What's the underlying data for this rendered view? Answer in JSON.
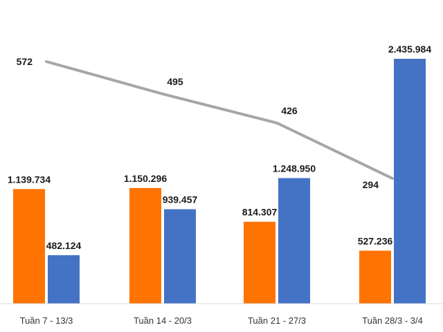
{
  "chart_data": {
    "type": "bar",
    "title": "",
    "xlabel": "",
    "ylabel": "",
    "categories": [
      "Tuần 7 - 13/3",
      "Tuần 14 - 20/3",
      "Tuần 21 - 27/3",
      "Tuần 28/3 - 3/4"
    ],
    "series": [
      {
        "name": "series-orange",
        "color": "#FF7300",
        "values": [
          1139734,
          1150296,
          814307,
          527236
        ],
        "labels": [
          "1.139.734",
          "1.150.296",
          "814.307",
          "527.236"
        ]
      },
      {
        "name": "series-blue",
        "color": "#4472C4",
        "values": [
          482124,
          939457,
          1248950,
          2435984
        ],
        "labels": [
          "482.124",
          "939.457",
          "1.248.950",
          "2.435.984"
        ]
      }
    ],
    "line_series": {
      "name": "series-line",
      "color": "#A6A6A6",
      "values": [
        572,
        495,
        426,
        294
      ],
      "labels": [
        "572",
        "495",
        "426",
        "294"
      ]
    },
    "ylim": [
      0,
      2700000
    ],
    "line_ylim": [
      0,
      700
    ],
    "grid": false,
    "legend": "none"
  }
}
